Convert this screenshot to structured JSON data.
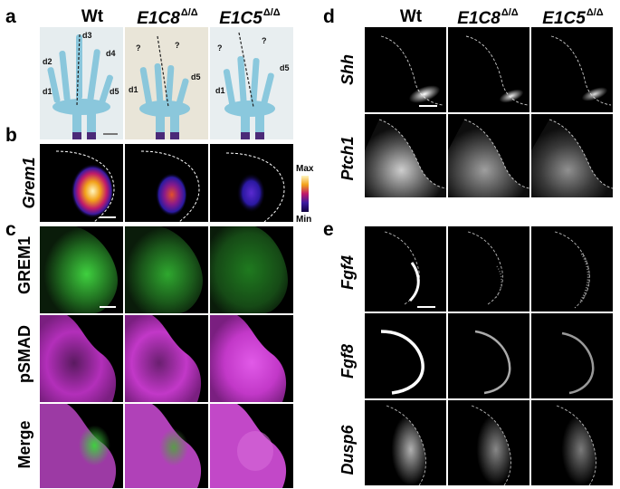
{
  "panels": {
    "a": "a",
    "b": "b",
    "c": "c",
    "d": "d",
    "e": "e"
  },
  "columns": [
    {
      "name": "Wt",
      "sup": ""
    },
    {
      "name": "E1C8",
      "sup": "Δ/Δ"
    },
    {
      "name": "E1C5",
      "sup": "Δ/Δ"
    }
  ],
  "skeleton_labels": {
    "wt": [
      "d3",
      "d2",
      "d4",
      "d1",
      "d5"
    ],
    "e1c8": [
      "?",
      "?",
      "d5",
      "d1"
    ],
    "e1c5": [
      "?",
      "?",
      "d5",
      "d1"
    ]
  },
  "row_labels": {
    "grem1": "Grem1",
    "grem1_protein": "GREM1",
    "psmad": "pSMAD",
    "merge": "Merge",
    "shh": "Shh",
    "ptch1": "Ptch1",
    "fgf4": "Fgf4",
    "fgf8": "Fgf8",
    "dusp6": "Dusp6"
  },
  "colorbar": {
    "max": "Max",
    "min": "Min"
  },
  "colors": {
    "background": "#ffffff",
    "tile_bg": "#000000",
    "cartilage": "#7fc3d8",
    "bone_purple": "#4b2a78",
    "grem1_green": "#3fa83f",
    "psmad_magenta": "#d23ad8"
  }
}
